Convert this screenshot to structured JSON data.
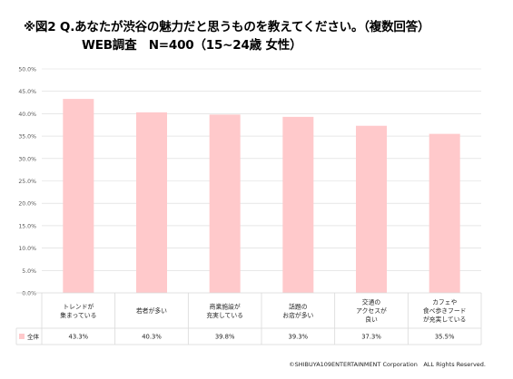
{
  "title_line1": "※図2 Q.あなたが渋谷の魅力だと思うものを教えてください。（複数回答）",
  "title_line2": "WEB調査　N=400（15~24歳 女性）",
  "copyright": "©SHIBUYA109ENTERTAINMENT Corporation　ALL Rights Reserved.",
  "colors": {
    "bar": "#ffc9cb",
    "grid": "#d9d9d9",
    "axis_text": "#595959"
  },
  "chart_data": {
    "type": "bar",
    "title": "※図2 Q.あなたが渋谷の魅力だと思うものを教えてください。（複数回答）",
    "subtitle": "WEB調査　N=400（15~24歳 女性）",
    "categories": [
      [
        "トレンドが",
        "集まっている"
      ],
      [
        "若者が多い"
      ],
      [
        "商業施設が",
        "充実している"
      ],
      [
        "話題の",
        "お店が多い"
      ],
      [
        "交通の",
        "アクセスが",
        "良い"
      ],
      [
        "カフェや",
        "食べ歩きフード",
        "が充実している"
      ]
    ],
    "series": [
      {
        "name": "全体",
        "values": [
          43.3,
          40.3,
          39.8,
          39.3,
          37.3,
          35.5
        ],
        "labels": [
          "43.3%",
          "40.3%",
          "39.8%",
          "39.3%",
          "37.3%",
          "35.5%"
        ]
      }
    ],
    "yticks": [
      "0.0%",
      "5.0%",
      "10.0%",
      "15.0%",
      "20.0%",
      "25.0%",
      "30.0%",
      "35.0%",
      "40.0%",
      "45.0%",
      "50.0%"
    ],
    "ylim": [
      0,
      50
    ],
    "grid": true,
    "legend": "data-table"
  }
}
